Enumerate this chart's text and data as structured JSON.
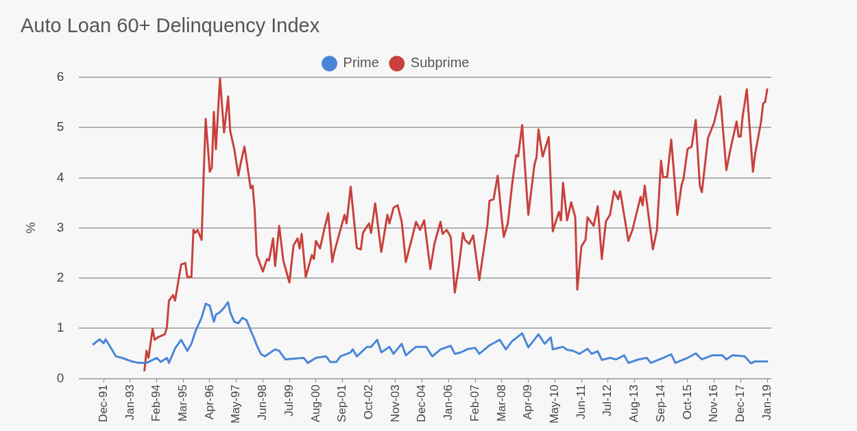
{
  "chart_data": {
    "type": "line",
    "title": "Auto Loan 60+ Delinquency Index",
    "ylabel": "%",
    "legend": "top",
    "grid": "y",
    "marker": "none",
    "line_style": "solid",
    "xlim": [
      "1990-12",
      "2019-03"
    ],
    "xticks": [
      {
        "value": "1991-12",
        "label": "Dec-91"
      },
      {
        "value": "1993-01",
        "label": "Jan-93"
      },
      {
        "value": "1994-02",
        "label": "Feb-94"
      },
      {
        "value": "1995-03",
        "label": "Mar-95"
      },
      {
        "value": "1996-04",
        "label": "Apr-96"
      },
      {
        "value": "1997-05",
        "label": "May-97"
      },
      {
        "value": "1998-06",
        "label": "Jun-98"
      },
      {
        "value": "1999-07",
        "label": "Jul-99"
      },
      {
        "value": "2000-08",
        "label": "Aug-00"
      },
      {
        "value": "2001-09",
        "label": "Sep-01"
      },
      {
        "value": "2002-10",
        "label": "Oct-02"
      },
      {
        "value": "2003-11",
        "label": "Nov-03"
      },
      {
        "value": "2004-12",
        "label": "Dec-04"
      },
      {
        "value": "2006-01",
        "label": "Jan-06"
      },
      {
        "value": "2007-02",
        "label": "Feb-07"
      },
      {
        "value": "2008-03",
        "label": "Mar-08"
      },
      {
        "value": "2009-04",
        "label": "Apr-09"
      },
      {
        "value": "2010-05",
        "label": "May-10"
      },
      {
        "value": "2011-06",
        "label": "Jun-11"
      },
      {
        "value": "2012-07",
        "label": "Jul-12"
      },
      {
        "value": "2013-08",
        "label": "Aug-13"
      },
      {
        "value": "2014-09",
        "label": "Sep-14"
      },
      {
        "value": "2015-10",
        "label": "Oct-15"
      },
      {
        "value": "2016-11",
        "label": "Nov-16"
      },
      {
        "value": "2017-12",
        "label": "Dec-17"
      },
      {
        "value": "2019-01",
        "label": "Jan-19"
      }
    ],
    "ylim": [
      0,
      6
    ],
    "yticks": [
      0,
      1,
      2,
      3,
      4,
      5,
      6
    ],
    "series": [
      {
        "name": "Prime",
        "color": "#4a86d8",
        "x": [
          "1991-07",
          "1991-10",
          "1991-12",
          "1992-01",
          "1992-04",
          "1992-06",
          "1992-09",
          "1993-01",
          "1993-05",
          "1993-09",
          "1994-02",
          "1994-04",
          "1994-07",
          "1994-08",
          "1994-11",
          "1995-02",
          "1995-05",
          "1995-07",
          "1995-09",
          "1995-12",
          "1996-02",
          "1996-04",
          "1996-06",
          "1996-07",
          "1996-09",
          "1996-11",
          "1997-01",
          "1997-02",
          "1997-04",
          "1997-06",
          "1997-08",
          "1997-10",
          "1997-12",
          "1998-02",
          "1998-03",
          "1998-05",
          "1998-07",
          "1998-12",
          "1999-02",
          "1999-05",
          "2000-02",
          "2000-04",
          "2000-08",
          "2001-01",
          "2001-03",
          "2001-06",
          "2001-08",
          "2002-01",
          "2002-02",
          "2002-04",
          "2002-09",
          "2002-11",
          "2003-02",
          "2003-04",
          "2003-08",
          "2003-10",
          "2004-02",
          "2004-04",
          "2004-09",
          "2005-02",
          "2005-05",
          "2005-09",
          "2006-02",
          "2006-04",
          "2006-07",
          "2006-10",
          "2007-02",
          "2007-04",
          "2007-09",
          "2008-02",
          "2008-05",
          "2008-08",
          "2009-01",
          "2009-04",
          "2009-09",
          "2009-12",
          "2010-03",
          "2010-04",
          "2010-09",
          "2010-11",
          "2011-02",
          "2011-05",
          "2011-09",
          "2011-11",
          "2012-02",
          "2012-04",
          "2012-08",
          "2012-11",
          "2013-03",
          "2013-05",
          "2013-10",
          "2014-02",
          "2014-04",
          "2014-10",
          "2015-02",
          "2015-04",
          "2015-10",
          "2016-02",
          "2016-05",
          "2016-10",
          "2017-03",
          "2017-05",
          "2017-08",
          "2018-02",
          "2018-05",
          "2018-07",
          "2019-01"
        ],
        "values": [
          0.68,
          0.78,
          0.7,
          0.78,
          0.58,
          0.44,
          0.41,
          0.35,
          0.31,
          0.31,
          0.41,
          0.33,
          0.41,
          0.31,
          0.6,
          0.77,
          0.55,
          0.69,
          0.94,
          1.21,
          1.49,
          1.45,
          1.13,
          1.27,
          1.32,
          1.41,
          1.52,
          1.32,
          1.13,
          1.1,
          1.21,
          1.16,
          0.96,
          0.77,
          0.66,
          0.49,
          0.44,
          0.58,
          0.55,
          0.38,
          0.41,
          0.31,
          0.41,
          0.44,
          0.33,
          0.33,
          0.44,
          0.52,
          0.58,
          0.44,
          0.63,
          0.63,
          0.77,
          0.52,
          0.63,
          0.49,
          0.69,
          0.46,
          0.63,
          0.63,
          0.44,
          0.58,
          0.65,
          0.49,
          0.52,
          0.58,
          0.61,
          0.49,
          0.66,
          0.77,
          0.58,
          0.74,
          0.9,
          0.62,
          0.88,
          0.69,
          0.82,
          0.58,
          0.63,
          0.57,
          0.55,
          0.49,
          0.59,
          0.49,
          0.54,
          0.37,
          0.41,
          0.38,
          0.46,
          0.31,
          0.38,
          0.41,
          0.31,
          0.41,
          0.48,
          0.31,
          0.41,
          0.5,
          0.38,
          0.46,
          0.46,
          0.38,
          0.46,
          0.44,
          0.3,
          0.34,
          0.34
        ]
      },
      {
        "name": "Subprime",
        "color": "#c8413c",
        "x": [
          "1993-08",
          "1993-09",
          "1993-10",
          "1993-12",
          "1994-01",
          "1994-03",
          "1994-06",
          "1994-07",
          "1994-08",
          "1994-10",
          "1994-11",
          "1995-02",
          "1995-04",
          "1995-05",
          "1995-07",
          "1995-08",
          "1995-09",
          "1995-10",
          "1995-12",
          "1996-01",
          "1996-02",
          "1996-04",
          "1996-05",
          "1996-06",
          "1996-07",
          "1996-09",
          "1996-11",
          "1997-01",
          "1997-02",
          "1997-04",
          "1997-06",
          "1997-07",
          "1997-09",
          "1997-12",
          "1998-01",
          "1998-02",
          "1998-03",
          "1998-06",
          "1998-08",
          "1998-09",
          "1998-11",
          "1998-12",
          "1999-02",
          "1999-04",
          "1999-07",
          "1999-09",
          "1999-11",
          "1999-12",
          "2000-01",
          "2000-03",
          "2000-06",
          "2000-07",
          "2000-08",
          "2000-10",
          "2000-12",
          "2001-02",
          "2001-04",
          "2001-05",
          "2001-10",
          "2001-11",
          "2002-01",
          "2002-04",
          "2002-06",
          "2002-07",
          "2002-10",
          "2002-11",
          "2003-01",
          "2003-04",
          "2003-07",
          "2003-08",
          "2003-10",
          "2003-12",
          "2004-02",
          "2004-04",
          "2004-07",
          "2004-09",
          "2004-11",
          "2005-01",
          "2005-04",
          "2005-06",
          "2005-09",
          "2005-10",
          "2005-12",
          "2006-02",
          "2006-04",
          "2006-06",
          "2006-08",
          "2006-09",
          "2006-11",
          "2007-01",
          "2007-04",
          "2007-08",
          "2007-09",
          "2007-11",
          "2008-01",
          "2008-03",
          "2008-04",
          "2008-06",
          "2008-08",
          "2008-10",
          "2008-11",
          "2009-01",
          "2009-02",
          "2009-04",
          "2009-07",
          "2009-08",
          "2009-09",
          "2009-11",
          "2010-02",
          "2010-04",
          "2010-05",
          "2010-07",
          "2010-08",
          "2010-09",
          "2010-11",
          "2011-01",
          "2011-03",
          "2011-04",
          "2011-06",
          "2011-08",
          "2011-09",
          "2011-12",
          "2012-02",
          "2012-04",
          "2012-06",
          "2012-08",
          "2012-10",
          "2012-12",
          "2013-01",
          "2013-05",
          "2013-07",
          "2013-11",
          "2013-12",
          "2014-01",
          "2014-05",
          "2014-07",
          "2014-09",
          "2014-10",
          "2014-12",
          "2015-02",
          "2015-05",
          "2015-07",
          "2015-08",
          "2015-10",
          "2015-12",
          "2016-02",
          "2016-04",
          "2016-05",
          "2016-08",
          "2016-11",
          "2017-02",
          "2017-05",
          "2017-07",
          "2017-10",
          "2017-11",
          "2017-12",
          "2018-01",
          "2018-03",
          "2018-06",
          "2018-07",
          "2018-10",
          "2018-11",
          "2018-12",
          "2019-01"
        ],
        "values": [
          0.16,
          0.55,
          0.41,
          0.99,
          0.77,
          0.83,
          0.88,
          1.02,
          1.55,
          1.66,
          1.55,
          2.27,
          2.3,
          2.02,
          2.02,
          2.96,
          2.9,
          2.96,
          2.76,
          4.04,
          5.17,
          4.12,
          4.2,
          5.31,
          4.57,
          5.98,
          4.9,
          5.62,
          4.93,
          4.57,
          4.04,
          4.26,
          4.62,
          3.79,
          3.84,
          3.35,
          2.46,
          2.13,
          2.38,
          2.35,
          2.79,
          2.24,
          3.04,
          2.35,
          1.91,
          2.65,
          2.79,
          2.59,
          2.88,
          2.02,
          2.46,
          2.38,
          2.74,
          2.59,
          2.96,
          3.29,
          2.32,
          2.52,
          3.26,
          3.09,
          3.82,
          2.6,
          2.57,
          2.9,
          3.09,
          2.9,
          3.49,
          2.52,
          3.26,
          3.09,
          3.4,
          3.45,
          3.12,
          2.32,
          2.79,
          3.12,
          2.96,
          3.15,
          2.18,
          2.68,
          3.12,
          2.88,
          2.96,
          2.82,
          1.71,
          2.24,
          2.9,
          2.76,
          2.68,
          2.85,
          1.96,
          3.07,
          3.54,
          3.57,
          4.04,
          3.18,
          2.82,
          3.1,
          3.84,
          4.45,
          4.42,
          5.05,
          4.42,
          3.26,
          4.26,
          4.4,
          4.96,
          4.42,
          4.81,
          2.93,
          3.07,
          3.32,
          3.15,
          3.9,
          3.15,
          3.51,
          3.21,
          1.77,
          2.63,
          2.76,
          3.21,
          3.04,
          3.43,
          2.38,
          3.13,
          3.26,
          3.73,
          3.57,
          3.73,
          2.74,
          2.96,
          3.62,
          3.45,
          3.84,
          2.57,
          2.96,
          4.34,
          4.01,
          4.01,
          4.76,
          3.26,
          3.84,
          3.98,
          4.57,
          4.62,
          5.15,
          3.84,
          3.71,
          4.79,
          5.1,
          5.62,
          4.15,
          4.57,
          5.12,
          4.82,
          4.82,
          5.23,
          5.76,
          4.12,
          4.45,
          5.12,
          5.48,
          5.51,
          5.76
        ]
      }
    ]
  }
}
